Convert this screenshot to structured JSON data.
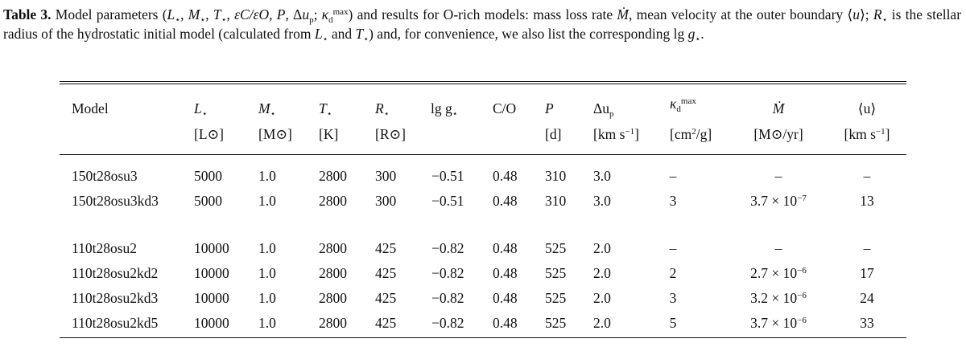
{
  "caption": {
    "label": "Table 3.",
    "part1": " Model parameters (",
    "lstar": "L",
    "comma1": ", ",
    "mstar": "M",
    "comma2": ", ",
    "tstar": "T",
    "comma3": ", ",
    "eps": "εC/εO",
    "comma4": ", ",
    "p": "P",
    "comma5": ", Δ",
    "up": "u",
    "up_sub": "p",
    "semi": "; ",
    "kappa": "κ",
    "kappa_sub": "d",
    "kappa_sup": "max",
    "part2": ") and results for O-rich models: mass loss rate ",
    "mdot": "Ṁ",
    "part3": ", mean velocity at the outer boundary ⟨",
    "u": "u",
    "part4": "⟩; ",
    "rstar": "R",
    "part5": " is the stellar radius of the hydrostatic initial model (calculated from ",
    "lstar2": "L",
    "part6": " and ",
    "tstar2": "T",
    "part7": ") and, for convenience, we also list the corresponding lg ",
    "g": "g",
    "part8": "."
  },
  "headers": {
    "model": "Model",
    "l": "L",
    "l_unit": "[L⊙]",
    "m": "M",
    "m_unit": "[M⊙]",
    "t": "T",
    "t_unit": "[K]",
    "r": "R",
    "r_unit": "[R⊙]",
    "lgg": "lg g",
    "co": "C/O",
    "p": "P",
    "p_unit": "[d]",
    "du": "Δu",
    "du_sub": "p",
    "du_unit": "[km s",
    "du_unit_sup": "−1",
    "du_unit_end": "]",
    "kappa": "κ",
    "kappa_sup": "max",
    "kappa_sub": "d",
    "kappa_unit": "[cm",
    "kappa_unit_sup": "2",
    "kappa_unit_end": "/g]",
    "mdot": "Ṁ",
    "mdot_unit": "[M⊙/yr]",
    "u": "⟨u⟩",
    "u_unit": "[km s",
    "u_unit_sup": "−1",
    "u_unit_end": "]",
    "star": "⋆"
  },
  "rows": [
    {
      "model": "150t28osu3",
      "l": "5000",
      "m": "1.0",
      "t": "2800",
      "r": "300",
      "lgg": "−0.51",
      "co": "0.48",
      "p": "310",
      "du": "3.0",
      "kappa": "–",
      "mdot_base": "–",
      "mdot_exp": "",
      "u": "–"
    },
    {
      "model": "150t28osu3kd3",
      "l": "5000",
      "m": "1.0",
      "t": "2800",
      "r": "300",
      "lgg": "−0.51",
      "co": "0.48",
      "p": "310",
      "du": "3.0",
      "kappa": "3",
      "mdot_base": "3.7 × 10",
      "mdot_exp": "−7",
      "u": "13"
    },
    {
      "model": "110t28osu2",
      "l": "10000",
      "m": "1.0",
      "t": "2800",
      "r": "425",
      "lgg": "−0.82",
      "co": "0.48",
      "p": "525",
      "du": "2.0",
      "kappa": "–",
      "mdot_base": "–",
      "mdot_exp": "",
      "u": "–"
    },
    {
      "model": "110t28osu2kd2",
      "l": "10000",
      "m": "1.0",
      "t": "2800",
      "r": "425",
      "lgg": "−0.82",
      "co": "0.48",
      "p": "525",
      "du": "2.0",
      "kappa": "2",
      "mdot_base": "2.7 × 10",
      "mdot_exp": "−6",
      "u": "17"
    },
    {
      "model": "110t28osu2kd3",
      "l": "10000",
      "m": "1.0",
      "t": "2800",
      "r": "425",
      "lgg": "−0.82",
      "co": "0.48",
      "p": "525",
      "du": "2.0",
      "kappa": "3",
      "mdot_base": "3.2 × 10",
      "mdot_exp": "−6",
      "u": "24"
    },
    {
      "model": "110t28osu2kd5",
      "l": "10000",
      "m": "1.0",
      "t": "2800",
      "r": "425",
      "lgg": "−0.82",
      "co": "0.48",
      "p": "525",
      "du": "2.0",
      "kappa": "5",
      "mdot_base": "3.7 × 10",
      "mdot_exp": "−6",
      "u": "33"
    }
  ]
}
